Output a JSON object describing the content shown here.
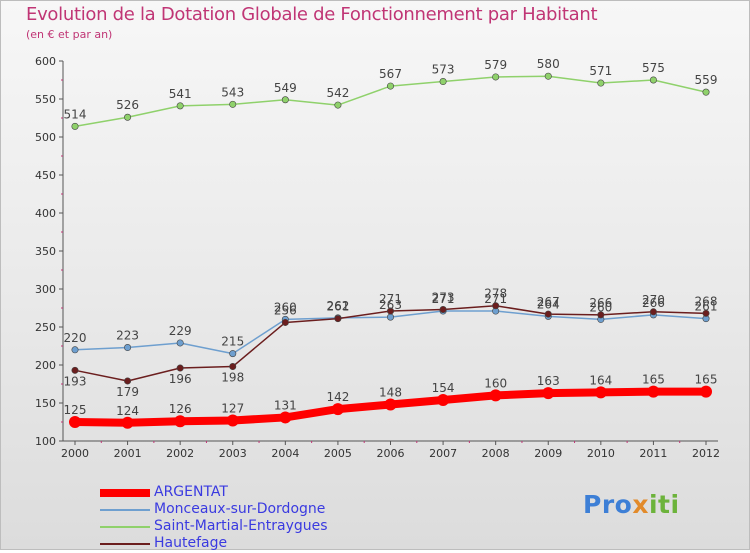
{
  "title": "Evolution de la Dotation Globale de Fonctionnement par Habitant",
  "subtitle": "(en € et par an)",
  "logo": {
    "part1": "Pro",
    "part2": "x",
    "part3": "iti"
  },
  "chart_data": {
    "type": "line",
    "title": "Evolution de la Dotation Globale de Fonctionnement par Habitant",
    "subtitle": "(en € et par an)",
    "x": [
      2000,
      2001,
      2002,
      2003,
      2004,
      2005,
      2006,
      2007,
      2008,
      2009,
      2010,
      2011,
      2012
    ],
    "ylim": [
      100,
      600
    ],
    "yticks": [
      100,
      150,
      200,
      250,
      300,
      350,
      400,
      450,
      500,
      550,
      600
    ],
    "grid": false,
    "legend": "bottom-left",
    "series": [
      {
        "name": "ARGENTAT",
        "color": "#ff0000",
        "values": [
          125,
          124,
          126,
          127,
          131,
          142,
          148,
          154,
          160,
          163,
          164,
          165,
          165
        ]
      },
      {
        "name": "Monceaux-sur-Dordogne",
        "color": "#6e9fcf",
        "values": [
          220,
          223,
          229,
          215,
          260,
          262,
          263,
          271,
          271,
          264,
          260,
          266,
          261
        ]
      },
      {
        "name": "Saint-Martial-Entraygues",
        "color": "#8fd16b",
        "values": [
          514,
          526,
          541,
          543,
          549,
          542,
          567,
          573,
          579,
          580,
          571,
          575,
          559
        ]
      },
      {
        "name": "Hautefage",
        "color": "#6b1e1e",
        "values": [
          193,
          179,
          196,
          198,
          256,
          261,
          271,
          273,
          278,
          267,
          266,
          270,
          268
        ]
      }
    ]
  }
}
